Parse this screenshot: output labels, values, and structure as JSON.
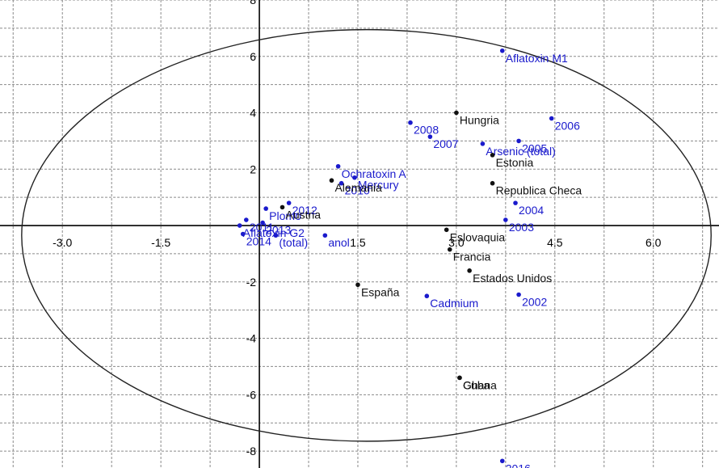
{
  "chart_data": {
    "type": "scatter",
    "title": "",
    "xlabel": "",
    "ylabel": "",
    "xlim": [
      -3.95,
      7.0
    ],
    "ylim": [
      -8.6,
      8.0
    ],
    "x_ticks": [
      {
        "value": -3.0,
        "label": "-3.0"
      },
      {
        "value": -1.5,
        "label": "-1.5"
      },
      {
        "value": 1.5,
        "label": "1.5"
      },
      {
        "value": 3.0,
        "label": "3.0"
      },
      {
        "value": 4.5,
        "label": "4.5"
      },
      {
        "value": 6.0,
        "label": "6.0"
      }
    ],
    "y_ticks": [
      {
        "value": 8,
        "label": "8"
      },
      {
        "value": 6,
        "label": "6"
      },
      {
        "value": 4,
        "label": "4"
      },
      {
        "value": 2,
        "label": "2"
      },
      {
        "value": -2,
        "label": "-2"
      },
      {
        "value": -4,
        "label": "-4"
      },
      {
        "value": -6,
        "label": "-6"
      },
      {
        "value": -8,
        "label": "-8"
      }
    ],
    "grid": true,
    "ellipse": {
      "cx": 1.63,
      "cy": -0.35,
      "rx": 5.25,
      "ry": 7.3
    },
    "colors": {
      "variables": "#1a1acc",
      "observations": "#111111",
      "grid": "#8a8a8a"
    },
    "series": [
      {
        "color": "#1a1acc",
        "points": [
          {
            "label": "Aflatoxin M1",
            "x": 3.7,
            "y": 6.2
          },
          {
            "label": "2006",
            "x": 4.45,
            "y": 3.8
          },
          {
            "label": "2008",
            "x": 2.3,
            "y": 3.65
          },
          {
            "label": "2007",
            "x": 2.6,
            "y": 3.15
          },
          {
            "label": "2005",
            "x": 3.95,
            "y": 3.0
          },
          {
            "label": "Arsenic (total)",
            "x": 3.4,
            "y": 2.9
          },
          {
            "label": "Ochratoxin A",
            "x": 1.2,
            "y": 2.1
          },
          {
            "label": "Mercury",
            "x": 1.45,
            "y": 1.7
          },
          {
            "label": "2010",
            "x": 1.25,
            "y": 1.5
          },
          {
            "label": "2012",
            "x": 0.45,
            "y": 0.8
          },
          {
            "label": "Plomo",
            "x": 0.1,
            "y": 0.6
          },
          {
            "label": "2011",
            "x": -0.2,
            "y": 0.2
          },
          {
            "label": "2013",
            "x": 0.05,
            "y": 0.1
          },
          {
            "label": "2004",
            "x": 3.9,
            "y": 0.8
          },
          {
            "label": "2003",
            "x": 3.75,
            "y": 0.2
          },
          {
            "label": "Aflatoxin G2",
            "x": -0.3,
            "y": 0.0
          },
          {
            "label": "2014",
            "x": -0.25,
            "y": -0.3
          },
          {
            "label": "(total)",
            "x": 0.25,
            "y": -0.35
          },
          {
            "label": "anol",
            "x": 1.0,
            "y": -0.35
          },
          {
            "label": "Cadmium",
            "x": 2.55,
            "y": -2.5
          },
          {
            "label": "2002",
            "x": 3.95,
            "y": -2.45
          },
          {
            "label": "2016",
            "x": 3.7,
            "y": -8.35
          }
        ]
      },
      {
        "color": "#111111",
        "points": [
          {
            "label": "Hungria",
            "x": 3.0,
            "y": 4.0
          },
          {
            "label": "Estonia",
            "x": 3.55,
            "y": 2.5
          },
          {
            "label": "Alemania",
            "x": 1.1,
            "y": 1.6
          },
          {
            "label": "Republica Checa",
            "x": 3.55,
            "y": 1.5
          },
          {
            "label": "Austria",
            "x": 0.35,
            "y": 0.65
          },
          {
            "label": "Eslovaquia",
            "x": 2.85,
            "y": -0.15
          },
          {
            "label": "Francia",
            "x": 2.9,
            "y": -0.85
          },
          {
            "label": "Estados Unidos",
            "x": 3.2,
            "y": -1.6
          },
          {
            "label": "España",
            "x": 1.5,
            "y": -2.1
          },
          {
            "label": "Cuba",
            "x": 3.05,
            "y": -5.4
          },
          {
            "label": "Ghana",
            "x": 3.05,
            "y": -5.4
          }
        ]
      }
    ]
  }
}
